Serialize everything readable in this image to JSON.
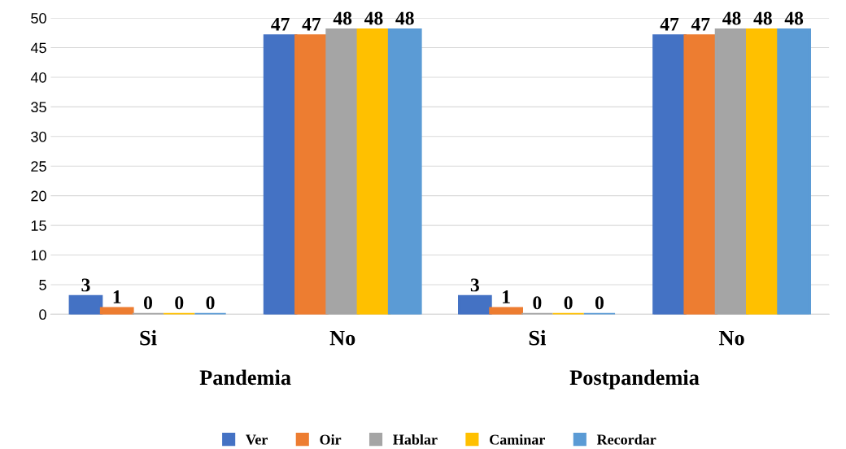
{
  "chart_data": {
    "type": "bar",
    "categories": [
      "Si",
      "No",
      "Si",
      "No"
    ],
    "series": [
      {
        "name": "Ver",
        "color": "#4472c4",
        "values": [
          3,
          47,
          3,
          47
        ]
      },
      {
        "name": "Oir",
        "color": "#ed7d31",
        "values": [
          1,
          47,
          1,
          47
        ]
      },
      {
        "name": "Hablar",
        "color": "#a5a5a5",
        "values": [
          0,
          48,
          0,
          48
        ]
      },
      {
        "name": "Caminar",
        "color": "#ffc000",
        "values": [
          0,
          48,
          0,
          48
        ]
      },
      {
        "name": "Recordar",
        "color": "#5b9bd5",
        "values": [
          0,
          48,
          0,
          48
        ]
      }
    ],
    "ylim": [
      0,
      50
    ],
    "yticks": [
      0,
      5,
      10,
      15,
      20,
      25,
      30,
      35,
      40,
      45,
      50
    ],
    "grid": "y",
    "legend": "bottom",
    "data_labels": true,
    "annotations": [
      "Pandemia",
      "Postpandemia"
    ]
  }
}
